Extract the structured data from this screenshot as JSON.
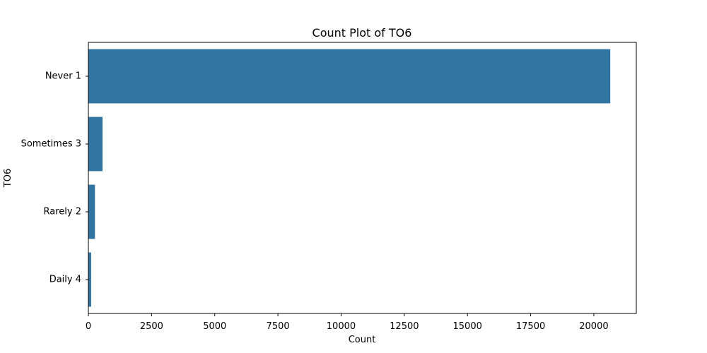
{
  "chart_data": {
    "type": "bar",
    "orientation": "horizontal",
    "title": "Count Plot of TO6",
    "xlabel": "Count",
    "ylabel": "TO6",
    "categories": [
      "Never 1",
      "Sometimes 3",
      "Rarely 2",
      "Daily 4"
    ],
    "values": [
      20650,
      560,
      260,
      110
    ],
    "xlim": [
      0,
      21680
    ],
    "xticks": [
      0,
      2500,
      5000,
      7500,
      10000,
      12500,
      15000,
      17500,
      20000
    ],
    "bar_color": "#3274a1",
    "grid": false
  }
}
